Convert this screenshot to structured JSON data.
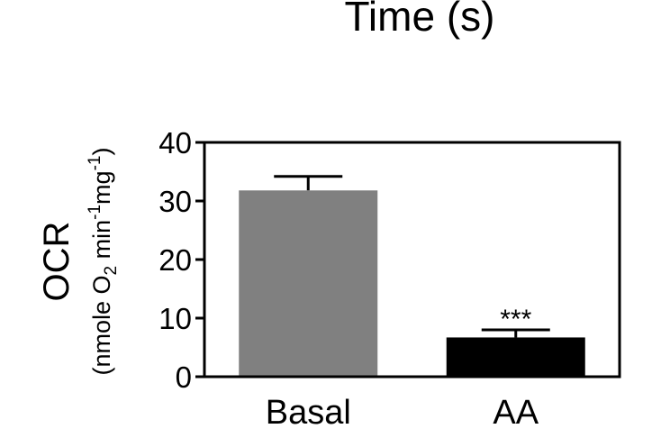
{
  "header_fragment": "Time (s)",
  "chart_data": {
    "type": "bar",
    "categories": [
      "Basal",
      "AA"
    ],
    "values": [
      31.8,
      6.7
    ],
    "error": [
      2.4,
      1.3
    ],
    "annotations": [
      "",
      "***"
    ],
    "ylabel": "OCR",
    "ylabel_unit": {
      "open": "(nmole O",
      "sub2": "2",
      "mid": " min",
      "sup1": "-1",
      "mg": "mg",
      "sup2": "-1",
      "close": ")"
    },
    "ylim": [
      0,
      40
    ],
    "yticks": [
      "0",
      "10",
      "20",
      "30",
      "40"
    ],
    "bar_colors": [
      "#808080",
      "#000000"
    ],
    "grid": false
  }
}
